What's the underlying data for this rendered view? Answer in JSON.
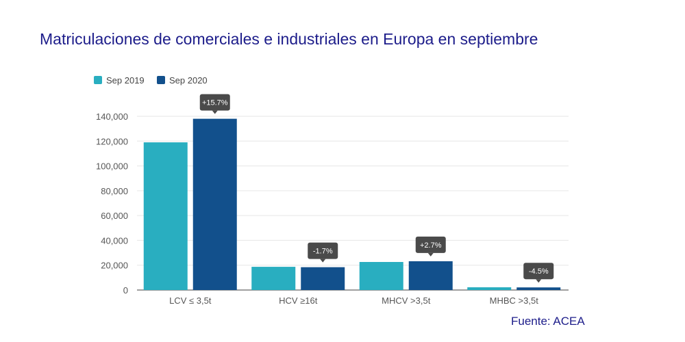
{
  "chart_data": {
    "type": "bar",
    "title": "Matriculaciones de comerciales e industriales en Europa en septiembre",
    "source": "Fuente: ACEA",
    "categories": [
      "LCV ≤ 3,5t",
      "HCV ≥16t",
      "MHCV >3,5t",
      "MHBC >3,5t"
    ],
    "series": [
      {
        "name": "Sep 2019",
        "color": "#29aec0",
        "values": [
          119000,
          18700,
          22600,
          2200
        ]
      },
      {
        "name": "Sep 2020",
        "color": "#12508c",
        "values": [
          138000,
          18400,
          23200,
          2100
        ]
      }
    ],
    "annotations": [
      "+15.7%",
      "-1.7%",
      "+2.7%",
      "-4.5%"
    ],
    "yticks": [
      "0",
      "20,000",
      "40,000",
      "60,000",
      "80,000",
      "100,000",
      "120,000",
      "140,000"
    ],
    "ylim": [
      0,
      140000
    ],
    "grid": true,
    "legend": "top-left"
  }
}
